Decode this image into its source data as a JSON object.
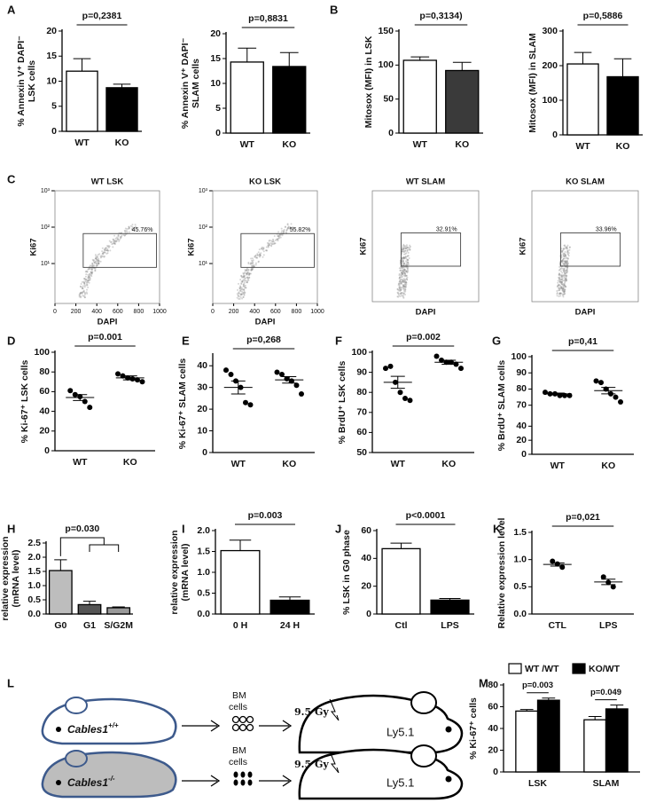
{
  "chart_data": [
    {
      "panel": "A",
      "type": "bar",
      "ylabel": [
        "% Annexin V⁺ DAPI⁻",
        "LSK cells"
      ],
      "categories": [
        "WT",
        "KO"
      ],
      "values": [
        12,
        8.7
      ],
      "errors": [
        2.5,
        0.7
      ],
      "colors": [
        "#ffffff",
        "#000000"
      ],
      "ylim": [
        0,
        20
      ],
      "yticks": [
        0,
        5,
        10,
        15,
        20
      ],
      "pvalue": "p=0,2381"
    },
    {
      "type": "bar",
      "ylabel": [
        "% Annexin V⁺ DAPI⁻",
        "SLAM cells"
      ],
      "categories": [
        "WT",
        "KO"
      ],
      "values": [
        14.3,
        13.4
      ],
      "errors": [
        2.8,
        2.8
      ],
      "colors": [
        "#ffffff",
        "#000000"
      ],
      "ylim": [
        0,
        20
      ],
      "yticks": [
        0,
        5,
        10,
        15,
        20
      ],
      "pvalue": "p=0,8831"
    },
    {
      "panel": "B",
      "type": "bar",
      "ylabel": [
        "Mitosox (MFI) in LSK"
      ],
      "categories": [
        "WT",
        "KO"
      ],
      "values": [
        107,
        92
      ],
      "errors": [
        5,
        12
      ],
      "colors": [
        "#ffffff",
        "#3a3a3a"
      ],
      "ylim": [
        0,
        150
      ],
      "yticks": [
        0,
        50,
        100,
        150
      ],
      "pvalue": "p=0,3134)"
    },
    {
      "type": "bar",
      "ylabel": [
        "Mitosox (MFI) in SLAM"
      ],
      "categories": [
        "WT",
        "KO"
      ],
      "values": [
        205,
        168
      ],
      "errors": [
        33,
        52
      ],
      "colors": [
        "#ffffff",
        "#000000"
      ],
      "ylim": [
        0,
        300
      ],
      "yticks": [
        0,
        100,
        200,
        300
      ],
      "pvalue": "p=0,5886"
    },
    {
      "panel": "C",
      "type": "flow",
      "title": "WT LSK",
      "xlabel": "DAPI",
      "ylabel": [
        "Ki67"
      ],
      "xlim": [
        0,
        1000
      ],
      "xticks": [
        0,
        200,
        400,
        600,
        800,
        1000
      ],
      "ylog": true,
      "ylim": [
        0.8,
        1000
      ],
      "yticks": [
        {
          "value": 1000,
          "label": "10³"
        },
        {
          "value": 100,
          "label": "10²"
        },
        {
          "value": 10,
          "label": "10¹"
        }
      ],
      "values": [
        45.76
      ],
      "value_labels": [
        "45.76%"
      ]
    },
    {
      "type": "flow",
      "title": "KO LSK",
      "xlabel": "DAPI",
      "ylabel": [
        "Ki67"
      ],
      "xlim": [
        0,
        1000
      ],
      "xticks": [
        0,
        200,
        400,
        600,
        800,
        1000
      ],
      "ylog": true,
      "ylim": [
        0.8,
        1000
      ],
      "yticks": [
        {
          "value": 1000,
          "label": "10³"
        },
        {
          "value": 100,
          "label": "10²"
        },
        {
          "value": 10,
          "label": "10¹"
        }
      ],
      "values": [
        55.82
      ],
      "value_labels": [
        "55.82%"
      ]
    },
    {
      "type": "flow",
      "title": "WT SLAM",
      "xlabel": "DAPI",
      "ylabel": [
        "Ki67"
      ],
      "values": [
        32.91
      ],
      "value_labels": [
        "32.91%"
      ]
    },
    {
      "type": "flow",
      "title": "KO SLAM",
      "xlabel": "DAPI",
      "ylabel": [
        "Ki67"
      ],
      "values": [
        33.96
      ],
      "value_labels": [
        "33.96%"
      ]
    },
    {
      "panel": "D",
      "type": "dot",
      "ylabel": [
        "% Ki-67⁺ LSK cells"
      ],
      "categories": [
        "WT",
        "KO"
      ],
      "values": [
        [
          61,
          57,
          55,
          50,
          44
        ],
        [
          78,
          76,
          74,
          73,
          72,
          70
        ]
      ],
      "means": [
        54,
        74
      ],
      "sems": [
        3,
        2
      ],
      "ylim": [
        0,
        100
      ],
      "yticks": [
        0,
        20,
        40,
        60,
        80,
        100
      ],
      "pvalue": "p=0.001"
    },
    {
      "panel": "E",
      "type": "dot",
      "ylabel": [
        "% Ki-67⁺ SLAM cells"
      ],
      "categories": [
        "WT",
        "KO"
      ],
      "values": [
        [
          38,
          36,
          33,
          30,
          23,
          22
        ],
        [
          37,
          36,
          34,
          33,
          31,
          27
        ]
      ],
      "means": [
        30,
        33.5
      ],
      "sems": [
        3,
        1.5
      ],
      "ylim": [
        0,
        45
      ],
      "yticks": [
        0,
        10,
        20,
        30,
        40
      ],
      "pvalue": "p=0,268"
    },
    {
      "panel": "F",
      "type": "dot",
      "ylabel": [
        "% BrdU⁺ LSK cells"
      ],
      "categories": [
        "WT",
        "KO"
      ],
      "values": [
        [
          92,
          93,
          85,
          80,
          77,
          76
        ],
        [
          98,
          96,
          95,
          95,
          94,
          92
        ]
      ],
      "means": [
        85,
        95
      ],
      "sems": [
        3,
        1
      ],
      "ylim": [
        50,
        100
      ],
      "yticks": [
        50,
        60,
        70,
        80,
        90,
        100
      ],
      "pvalue": "p=0.002"
    },
    {
      "panel": "G",
      "type": "dot",
      "ylabel": [
        "% BrdU⁺ SLAM cells"
      ],
      "categories": [
        "WT",
        "KO"
      ],
      "values": [
        [
          78,
          77,
          77,
          76,
          76,
          76
        ],
        [
          85,
          84,
          80,
          77,
          75,
          72
        ]
      ],
      "means": [
        77,
        79
      ],
      "sems": [
        0.5,
        2
      ],
      "ylim": [
        0,
        100
      ],
      "ybreak": [
        50,
        65
      ],
      "yticks": [
        0,
        20,
        40,
        70,
        80,
        90,
        100
      ],
      "pvalue": "p=0,41"
    },
    {
      "panel": "H",
      "type": "bar",
      "ylabel": [
        "relative expression",
        "(mRNA level)"
      ],
      "categories": [
        "G0",
        "G1",
        "S/G2M"
      ],
      "values": [
        1.53,
        0.33,
        0.22
      ],
      "errors": [
        0.38,
        0.12,
        0.03
      ],
      "colors": [
        "#bdbdbd",
        "#555555",
        "#9a9a9a"
      ],
      "ylim": [
        0,
        2.5
      ],
      "yticks": [
        {
          "value": 0,
          "label": "0.0"
        },
        0.5,
        {
          "value": 1,
          "label": "1.0"
        },
        1.5,
        {
          "value": 2,
          "label": "2.0"
        },
        2.5
      ],
      "pvalue": "p=0.030",
      "bracket": true
    },
    {
      "panel": "I",
      "type": "bar",
      "ylabel": [
        "relative expression",
        "(mRNA level)"
      ],
      "categories": [
        "0 H",
        "24 H"
      ],
      "values": [
        1.52,
        0.33
      ],
      "errors": [
        0.25,
        0.08
      ],
      "colors": [
        "#ffffff",
        "#000000"
      ],
      "ylim": [
        0,
        2.0
      ],
      "yticks": [
        {
          "value": 0,
          "label": "0.0"
        },
        0.5,
        {
          "value": 1,
          "label": "1.0"
        },
        1.5,
        {
          "value": 2,
          "label": "2.0"
        }
      ],
      "pvalue": "p=0.003"
    },
    {
      "panel": "J",
      "type": "bar",
      "ylabel": [
        "% LSK in G0 phase"
      ],
      "categories": [
        "Ctl",
        "LPS"
      ],
      "values": [
        47,
        10
      ],
      "errors": [
        4,
        1.2
      ],
      "colors": [
        "#ffffff",
        "#000000"
      ],
      "ylim": [
        0,
        60
      ],
      "yticks": [
        0,
        20,
        40,
        60
      ],
      "pvalue": "p<0.0001"
    },
    {
      "panel": "K",
      "type": "dot",
      "ylabel": [
        "Relative expression level"
      ],
      "categories": [
        "CTL",
        "LPS"
      ],
      "values": [
        [
          0.97,
          0.92,
          0.86
        ],
        [
          0.68,
          0.58,
          0.5
        ]
      ],
      "means": [
        0.91,
        0.59
      ],
      "sems": [
        0.03,
        0.05
      ],
      "ylim": [
        0,
        1.5
      ],
      "yticks": [
        {
          "value": 0,
          "label": "0.0"
        },
        0.5,
        {
          "value": 1,
          "label": "1.0"
        },
        1.5
      ],
      "pvalue": "p=0,021"
    },
    {
      "panel": "M",
      "type": "grouped_bar",
      "ylabel": [
        "% Ki-67⁺ cells"
      ],
      "categories": [
        "LSK",
        "SLAM"
      ],
      "series": [
        {
          "name": "WT /WT",
          "color": "#ffffff",
          "values": [
            56,
            48
          ],
          "errors": [
            1.5,
            3
          ]
        },
        {
          "name": "KO/WT",
          "color": "#000000",
          "values": [
            66,
            58
          ],
          "errors": [
            2,
            3.5
          ]
        }
      ],
      "ylim": [
        0,
        80
      ],
      "yticks": [
        0,
        20,
        40,
        60,
        80
      ],
      "pvalues": [
        "p=0.003",
        "p=0.049"
      ]
    }
  ],
  "diagram": {
    "panel": "L",
    "rows": [
      {
        "donor": "Cables1",
        "genotype": "+/+",
        "cells": [
          "BM",
          "cells"
        ],
        "dose": "9.5 Gy",
        "recipient": "Ly5.1"
      },
      {
        "donor": "Cables1",
        "genotype": "-/-",
        "cells": [
          "BM",
          "cells"
        ],
        "dose": "9.5 Gy",
        "recipient": "Ly5.1"
      }
    ]
  }
}
